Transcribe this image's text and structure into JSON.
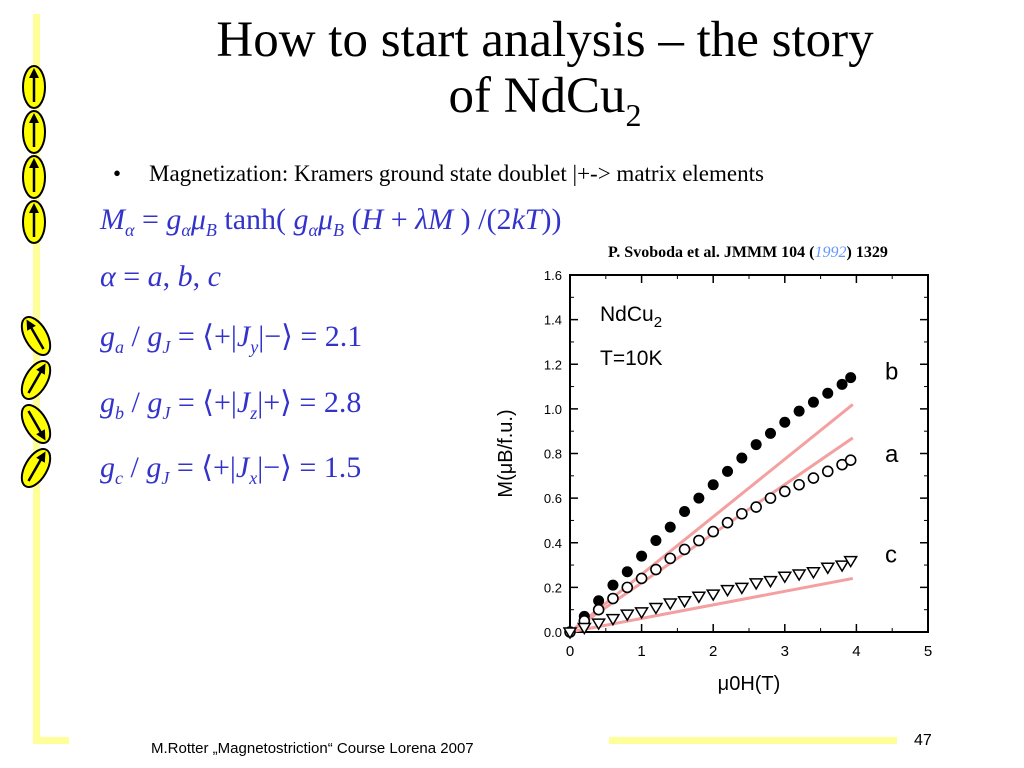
{
  "slide": {
    "title_line1": "How to start analysis – the story",
    "title_line2": "of NdCu",
    "title_sub": "2",
    "bullet_symbol": "•",
    "bullet_text": "Magnetization: Kramers ground state doublet |+-> matrix elements",
    "reference": {
      "prefix": "P. Svoboda et al. JMMM 104 (",
      "year": "1992",
      "suffix": ") 1329"
    },
    "footer": "M.Rotter „Magnetostriction“ Course Lorena 2007",
    "page_number": "47"
  },
  "equations": {
    "eq1": "M_α = g_α μ_B tanh( g_α μ_B (H + λM ) /(2kT))",
    "eq2": "α = a, b, c",
    "eq3": "g_a / g_J = ⟨+|J_y|−⟩ = 2.1",
    "eq4": "g_b / g_J = ⟨+|J_z|+⟩ = 2.8",
    "eq5": "g_c / g_J = ⟨+|J_x|−⟩ = 1.5",
    "values": {
      "ga": "2.1",
      "gb": "2.8",
      "gc": "1.5"
    }
  },
  "spin_icons": [
    "arrow-up",
    "arrow-up",
    "arrow-up",
    "arrow-up",
    "arrow-up-left",
    "arrow-up-right",
    "arrow-down-right",
    "arrow-up-right"
  ],
  "colors": {
    "equation": "#3333cc",
    "fit_line": "#f4a0a0",
    "ellipse_fill": "#ffff00",
    "decoration": "#ffff99",
    "ref_year": "#6699ff"
  },
  "chart_data": {
    "type": "scatter",
    "sample_label": "NdCu",
    "sample_sub": "2",
    "temperature_label": "T=10K",
    "xlabel": "μ0H(T)",
    "ylabel": "M(μB/f.u.)",
    "xlim": [
      0,
      5
    ],
    "ylim": [
      0,
      1.6
    ],
    "x_ticks": [
      "0",
      "1",
      "2",
      "3",
      "4",
      "5"
    ],
    "y_ticks": [
      "0.0",
      "0.2",
      "0.4",
      "0.6",
      "0.8",
      "1.0",
      "1.2",
      "1.4",
      "1.6"
    ],
    "series": [
      {
        "name": "b",
        "marker": "filled-circle",
        "x": [
          0.0,
          0.2,
          0.4,
          0.6,
          0.8,
          1.0,
          1.2,
          1.4,
          1.6,
          1.8,
          2.0,
          2.2,
          2.4,
          2.6,
          2.8,
          3.0,
          3.2,
          3.4,
          3.6,
          3.8,
          3.92
        ],
        "y": [
          0.0,
          0.07,
          0.14,
          0.21,
          0.27,
          0.34,
          0.41,
          0.47,
          0.54,
          0.6,
          0.66,
          0.72,
          0.78,
          0.84,
          0.89,
          0.94,
          0.99,
          1.03,
          1.07,
          1.11,
          1.14
        ]
      },
      {
        "name": "a",
        "marker": "open-circle",
        "x": [
          0.0,
          0.2,
          0.4,
          0.6,
          0.8,
          1.0,
          1.2,
          1.4,
          1.6,
          1.8,
          2.0,
          2.2,
          2.4,
          2.6,
          2.8,
          3.0,
          3.2,
          3.4,
          3.6,
          3.8,
          3.92
        ],
        "y": [
          0.0,
          0.05,
          0.1,
          0.15,
          0.2,
          0.24,
          0.28,
          0.33,
          0.37,
          0.41,
          0.45,
          0.49,
          0.53,
          0.56,
          0.6,
          0.63,
          0.66,
          0.69,
          0.72,
          0.75,
          0.77
        ]
      },
      {
        "name": "c",
        "marker": "open-triangle-down",
        "x": [
          0.0,
          0.2,
          0.4,
          0.6,
          0.8,
          1.0,
          1.2,
          1.4,
          1.6,
          1.8,
          2.0,
          2.2,
          2.4,
          2.6,
          2.8,
          3.0,
          3.2,
          3.4,
          3.6,
          3.8,
          3.92
        ],
        "y": [
          0.0,
          0.02,
          0.04,
          0.06,
          0.08,
          0.09,
          0.11,
          0.13,
          0.14,
          0.16,
          0.17,
          0.19,
          0.2,
          0.22,
          0.23,
          0.25,
          0.26,
          0.27,
          0.29,
          0.3,
          0.32
        ]
      }
    ],
    "fit_lines": [
      {
        "name": "b-fit",
        "x": [
          0,
          3.95
        ],
        "y": [
          0,
          1.02
        ]
      },
      {
        "name": "a-fit",
        "x": [
          0,
          3.95
        ],
        "y": [
          0,
          0.87
        ]
      },
      {
        "name": "c-fit",
        "x": [
          0,
          3.95
        ],
        "y": [
          0,
          0.24
        ]
      }
    ]
  }
}
